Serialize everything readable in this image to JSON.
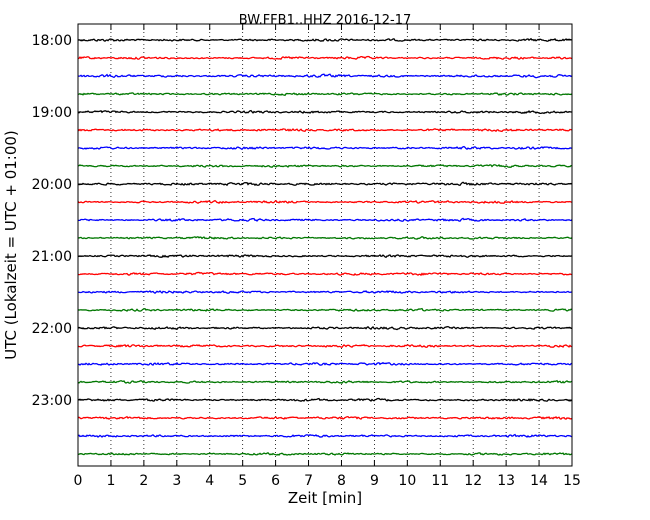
{
  "chart_data": {
    "type": "line",
    "title": "BW.FFB1..HHZ 2016-12-17",
    "xlabel": "Zeit  [min]",
    "ylabel": "UTC (Lokalzeit = UTC + 01:00)",
    "xlim": [
      0,
      15
    ],
    "x_ticks": [
      "0",
      "1",
      "2",
      "3",
      "4",
      "5",
      "6",
      "7",
      "8",
      "9",
      "10",
      "11",
      "12",
      "13",
      "14",
      "15"
    ],
    "y_ticks": [
      "18:00",
      "19:00",
      "20:00",
      "21:00",
      "22:00",
      "23:00"
    ],
    "grid": "vertical dotted",
    "trace_colors": [
      "#000000",
      "#ff0000",
      "#0000ff",
      "#007700"
    ],
    "traces": [
      {
        "start": "18:00",
        "amplitude": 1.0
      },
      {
        "start": "18:15",
        "amplitude": 1.0
      },
      {
        "start": "18:30",
        "amplitude": 1.1
      },
      {
        "start": "18:45",
        "amplitude": 0.9
      },
      {
        "start": "19:00",
        "amplitude": 1.0
      },
      {
        "start": "19:15",
        "amplitude": 1.0
      },
      {
        "start": "19:30",
        "amplitude": 1.0
      },
      {
        "start": "19:45",
        "amplitude": 0.9
      },
      {
        "start": "20:00",
        "amplitude": 1.1
      },
      {
        "start": "20:15",
        "amplitude": 1.0
      },
      {
        "start": "20:30",
        "amplitude": 1.0
      },
      {
        "start": "20:45",
        "amplitude": 0.9
      },
      {
        "start": "21:00",
        "amplitude": 1.0
      },
      {
        "start": "21:15",
        "amplitude": 1.0
      },
      {
        "start": "21:30",
        "amplitude": 1.0
      },
      {
        "start": "21:45",
        "amplitude": 0.9
      },
      {
        "start": "22:00",
        "amplitude": 1.0
      },
      {
        "start": "22:15",
        "amplitude": 1.0
      },
      {
        "start": "22:30",
        "amplitude": 1.0
      },
      {
        "start": "22:45",
        "amplitude": 0.9
      },
      {
        "start": "23:00",
        "amplitude": 1.0
      },
      {
        "start": "23:15",
        "amplitude": 1.0
      },
      {
        "start": "23:30",
        "amplitude": 1.0
      },
      {
        "start": "23:45",
        "amplitude": 0.9
      }
    ]
  }
}
